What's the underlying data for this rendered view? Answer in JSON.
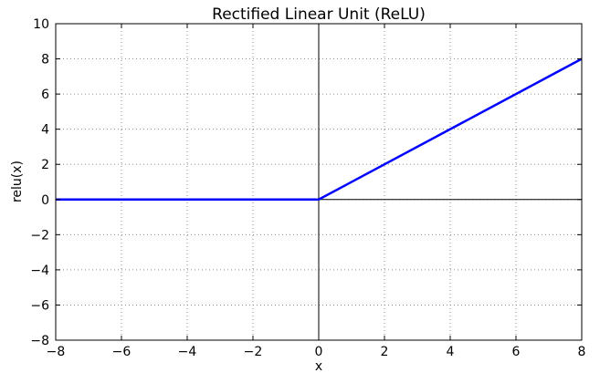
{
  "chart_data": {
    "type": "line",
    "title": "Rectified Linear Unit (ReLU)",
    "xlabel": "x",
    "ylabel": "relu(x)",
    "xlim": [
      -8,
      8
    ],
    "ylim": [
      -8,
      10
    ],
    "xticks": [
      -8,
      -6,
      -4,
      -2,
      0,
      2,
      4,
      6,
      8
    ],
    "yticks": [
      -8,
      -6,
      -4,
      -2,
      0,
      2,
      4,
      6,
      8,
      10
    ],
    "xtick_labels": [
      "−8",
      "−6",
      "−4",
      "−2",
      "0",
      "2",
      "4",
      "6",
      "8"
    ],
    "ytick_labels": [
      "−8",
      "−6",
      "−4",
      "−2",
      "0",
      "2",
      "4",
      "6",
      "8",
      "10"
    ],
    "grid": true,
    "zero_lines": true,
    "series": [
      {
        "x": [
          -8,
          0,
          8
        ],
        "y": [
          0,
          0,
          8
        ],
        "color": "#0000ff"
      }
    ]
  }
}
